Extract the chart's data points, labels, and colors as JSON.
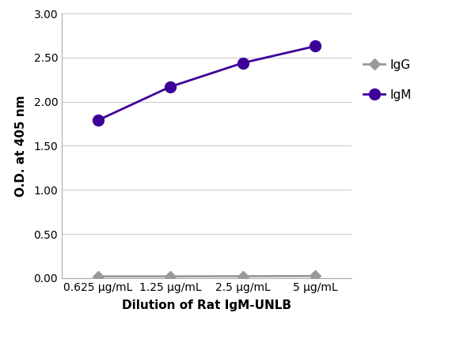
{
  "x_labels": [
    "0.625 μg/mL",
    "1.25 μg/mL",
    "2.5 μg/mL",
    "5 μg/mL"
  ],
  "x_positions": [
    0,
    1,
    2,
    3
  ],
  "IgG_values": [
    0.018,
    0.018,
    0.02,
    0.022
  ],
  "IgM_values": [
    1.79,
    2.17,
    2.44,
    2.63
  ],
  "IgG_color": "#999999",
  "IgM_color": "#3d0099",
  "xlabel": "Dilution of Rat IgM-UNLB",
  "ylabel": "O.D. at 405 nm",
  "ylim": [
    0.0,
    3.0
  ],
  "yticks": [
    0.0,
    0.5,
    1.0,
    1.5,
    2.0,
    2.5,
    3.0
  ],
  "ytick_labels": [
    "0.00",
    "0.50",
    "1.00",
    "1.50",
    "2.00",
    "2.50",
    "3.00"
  ],
  "legend_IgG": "IgG",
  "legend_IgM": "IgM",
  "marker_size": 8,
  "linewidth": 2.0,
  "bg_color": "#ffffff",
  "grid_color": "#cccccc",
  "tick_fontsize": 10,
  "label_fontsize": 11
}
